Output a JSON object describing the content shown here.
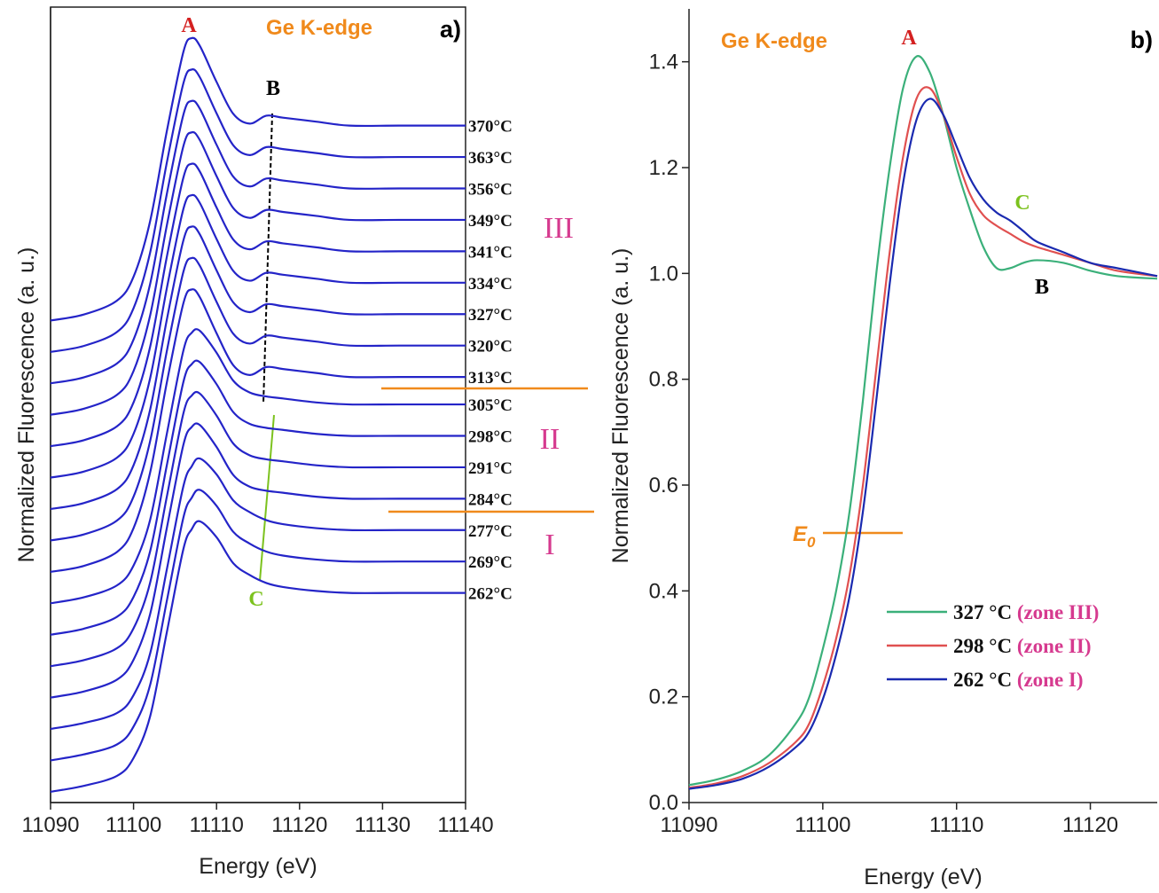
{
  "chart_data": [
    {
      "type": "line",
      "xlabel": "Energy (eV)",
      "ylabel": "Normalized Fluorescence (a. u.)",
      "color": "#2424c8",
      "annotations": [
        "A",
        "B",
        "C",
        "Ge K-edge",
        "a)",
        "III",
        "II",
        "I"
      ],
      "xlim": [
        11090,
        11140
      ],
      "xticks": [
        11090,
        11100,
        11110,
        11120,
        11130,
        11140
      ],
      "ylim": [
        0,
        4
      ],
      "x": [
        11090,
        11094,
        11098,
        11100,
        11102,
        11104,
        11106,
        11107,
        11108,
        11110,
        11112,
        11114,
        11116,
        11118,
        11122,
        11126,
        11132,
        11140
      ],
      "series": [
        {
          "name": "262°C",
          "values": [
            0.054,
            0.084,
            0.134,
            0.224,
            0.434,
            0.854,
            1.274,
            1.374,
            1.414,
            1.334,
            1.204,
            1.144,
            1.104,
            1.084,
            1.064,
            1.054,
            1.054,
            1.054
          ]
        },
        {
          "name": "269°C",
          "values": [
            0.212,
            0.242,
            0.292,
            0.382,
            0.592,
            1.012,
            1.432,
            1.532,
            1.572,
            1.492,
            1.362,
            1.302,
            1.262,
            1.242,
            1.222,
            1.212,
            1.212,
            1.212
          ]
        },
        {
          "name": "277°C",
          "values": [
            0.37,
            0.4,
            0.45,
            0.54,
            0.75,
            1.17,
            1.59,
            1.69,
            1.73,
            1.65,
            1.52,
            1.46,
            1.42,
            1.4,
            1.38,
            1.37,
            1.37,
            1.37
          ]
        },
        {
          "name": "284°C",
          "values": [
            0.528,
            0.558,
            0.618,
            0.718,
            0.948,
            1.378,
            1.798,
            1.888,
            1.898,
            1.788,
            1.648,
            1.588,
            1.568,
            1.558,
            1.538,
            1.528,
            1.528,
            1.528
          ]
        },
        {
          "name": "291°C",
          "values": [
            0.686,
            0.716,
            0.776,
            0.876,
            1.106,
            1.536,
            1.956,
            2.046,
            2.056,
            1.946,
            1.806,
            1.746,
            1.726,
            1.716,
            1.696,
            1.686,
            1.686,
            1.686
          ]
        },
        {
          "name": "298°C",
          "values": [
            0.844,
            0.874,
            0.934,
            1.034,
            1.264,
            1.694,
            2.114,
            2.204,
            2.214,
            2.104,
            1.964,
            1.904,
            1.884,
            1.874,
            1.854,
            1.844,
            1.844,
            1.844
          ]
        },
        {
          "name": "305°C",
          "values": [
            1.002,
            1.032,
            1.092,
            1.192,
            1.422,
            1.852,
            2.272,
            2.362,
            2.372,
            2.262,
            2.122,
            2.062,
            2.042,
            2.032,
            2.012,
            2.002,
            2.002,
            2.002
          ]
        },
        {
          "name": "313°C",
          "values": [
            1.16,
            1.19,
            1.26,
            1.38,
            1.66,
            2.11,
            2.51,
            2.58,
            2.54,
            2.36,
            2.2,
            2.15,
            2.19,
            2.18,
            2.16,
            2.14,
            2.14,
            2.14
          ]
        },
        {
          "name": "320°C",
          "values": [
            1.318,
            1.348,
            1.418,
            1.538,
            1.818,
            2.268,
            2.668,
            2.738,
            2.698,
            2.518,
            2.358,
            2.308,
            2.348,
            2.338,
            2.318,
            2.298,
            2.298,
            2.298
          ]
        },
        {
          "name": "327°C",
          "values": [
            1.476,
            1.506,
            1.576,
            1.696,
            1.976,
            2.426,
            2.826,
            2.896,
            2.856,
            2.676,
            2.516,
            2.466,
            2.506,
            2.496,
            2.476,
            2.456,
            2.456,
            2.456
          ]
        },
        {
          "name": "334°C",
          "values": [
            1.634,
            1.664,
            1.734,
            1.854,
            2.134,
            2.584,
            2.984,
            3.054,
            3.014,
            2.834,
            2.674,
            2.624,
            2.664,
            2.654,
            2.634,
            2.614,
            2.614,
            2.614
          ]
        },
        {
          "name": "341°C",
          "values": [
            1.792,
            1.822,
            1.892,
            2.012,
            2.292,
            2.742,
            3.142,
            3.212,
            3.172,
            2.992,
            2.832,
            2.782,
            2.822,
            2.812,
            2.792,
            2.772,
            2.772,
            2.772
          ]
        },
        {
          "name": "349°C",
          "values": [
            1.95,
            1.98,
            2.05,
            2.17,
            2.45,
            2.9,
            3.3,
            3.37,
            3.33,
            3.15,
            2.99,
            2.94,
            2.98,
            2.97,
            2.95,
            2.93,
            2.93,
            2.93
          ]
        },
        {
          "name": "356°C",
          "values": [
            2.108,
            2.138,
            2.208,
            2.328,
            2.608,
            3.058,
            3.458,
            3.528,
            3.488,
            3.308,
            3.148,
            3.098,
            3.138,
            3.128,
            3.108,
            3.088,
            3.088,
            3.088
          ]
        },
        {
          "name": "363°C",
          "values": [
            2.266,
            2.296,
            2.366,
            2.486,
            2.766,
            3.216,
            3.616,
            3.686,
            3.646,
            3.466,
            3.306,
            3.256,
            3.296,
            3.286,
            3.266,
            3.246,
            3.246,
            3.246
          ]
        },
        {
          "name": "370°C",
          "values": [
            2.424,
            2.454,
            2.524,
            2.644,
            2.924,
            3.374,
            3.774,
            3.844,
            3.804,
            3.624,
            3.464,
            3.414,
            3.454,
            3.444,
            3.424,
            3.404,
            3.404,
            3.404
          ]
        }
      ]
    },
    {
      "type": "line",
      "xlabel": "Energy (eV)",
      "ylabel": "Normalized Fluorescence (a. u.)",
      "legend": "lower right",
      "annotations": [
        "Ge K-edge",
        "b)",
        "A",
        "C",
        "B",
        "E",
        "0"
      ],
      "xlim": [
        11090,
        11125
      ],
      "xticks": [
        11090,
        11100,
        11110,
        11120
      ],
      "ylim": [
        0,
        1.5
      ],
      "yticks": [
        {
          "value": 0,
          "label": "0.0"
        },
        0.2,
        0.4,
        0.6,
        0.8,
        {
          "value": 1,
          "label": "1.0"
        },
        1.2,
        1.4
      ],
      "x": [
        11090,
        11092,
        11094,
        11096,
        11098,
        11099,
        11100,
        11101,
        11102,
        11103,
        11104,
        11105,
        11106,
        11107,
        11108,
        11109,
        11110,
        11111,
        11112,
        11113,
        11114,
        11115,
        11116,
        11118,
        11120,
        11122,
        11125
      ],
      "series": [
        {
          "name": "327 °C",
          "zone": "(zone III)",
          "color": "#3bb07a",
          "values": [
            0.033,
            0.043,
            0.06,
            0.09,
            0.15,
            0.2,
            0.29,
            0.4,
            0.55,
            0.76,
            1.0,
            1.2,
            1.35,
            1.41,
            1.38,
            1.3,
            1.2,
            1.12,
            1.05,
            1.01,
            1.01,
            1.02,
            1.025,
            1.02,
            1.005,
            0.995,
            0.99
          ]
        },
        {
          "name": "298 °C",
          "zone": "(zone II)",
          "color": "#e05050",
          "values": [
            0.028,
            0.036,
            0.05,
            0.075,
            0.115,
            0.15,
            0.22,
            0.31,
            0.43,
            0.6,
            0.82,
            1.04,
            1.22,
            1.33,
            1.35,
            1.3,
            1.22,
            1.15,
            1.11,
            1.09,
            1.075,
            1.06,
            1.05,
            1.035,
            1.02,
            1.005,
            0.995
          ]
        },
        {
          "name": "262 °C",
          "zone": "(zone I)",
          "color": "#1a2ab0",
          "values": [
            0.026,
            0.033,
            0.045,
            0.068,
            0.105,
            0.135,
            0.195,
            0.28,
            0.39,
            0.55,
            0.76,
            0.98,
            1.17,
            1.29,
            1.33,
            1.3,
            1.24,
            1.18,
            1.14,
            1.115,
            1.1,
            1.08,
            1.06,
            1.04,
            1.02,
            1.01,
            0.995
          ]
        }
      ]
    }
  ]
}
